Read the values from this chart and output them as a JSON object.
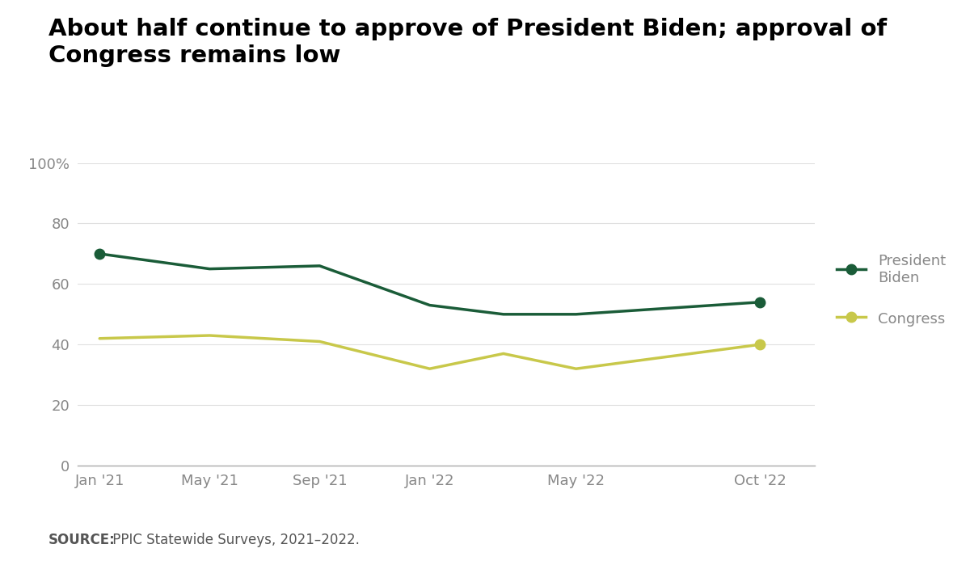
{
  "title_line1": "About half continue to approve of President Biden; approval of",
  "title_line2": "Congress remains low",
  "title_fontsize": 21,
  "title_fontweight": "bold",
  "x_positions": [
    0,
    1,
    2,
    3,
    3.67,
    4.33,
    6
  ],
  "biden_values": [
    70,
    65,
    66,
    53,
    50,
    50,
    54
  ],
  "congress_values": [
    42,
    43,
    41,
    32,
    37,
    32,
    40
  ],
  "biden_color": "#1a5c38",
  "congress_color": "#c8c84a",
  "line_width": 2.5,
  "marker_size": 9,
  "ylim": [
    0,
    100
  ],
  "yticks": [
    0,
    20,
    40,
    60,
    80,
    100
  ],
  "ytick_labels": [
    "0",
    "20",
    "40",
    "60",
    "80",
    "100%"
  ],
  "xtick_positions": [
    0,
    1,
    2,
    3,
    4.33,
    6
  ],
  "xtick_labels": [
    "Jan '21",
    "May '21",
    "Sep '21",
    "Jan '22",
    "May '22",
    "Oct '22"
  ],
  "legend_label_biden": "President\nBiden",
  "legend_label_congress": "Congress",
  "source_bold": "SOURCE:",
  "source_text": " PPIC Statewide Surveys, 2021–2022.",
  "background_color": "#ffffff",
  "footer_background": "#ebebeb",
  "axis_color": "#aaaaaa",
  "tick_label_color": "#888888",
  "tick_label_fontsize": 13,
  "legend_fontsize": 13,
  "source_fontsize": 12,
  "grid_color": "#e0e0e0"
}
